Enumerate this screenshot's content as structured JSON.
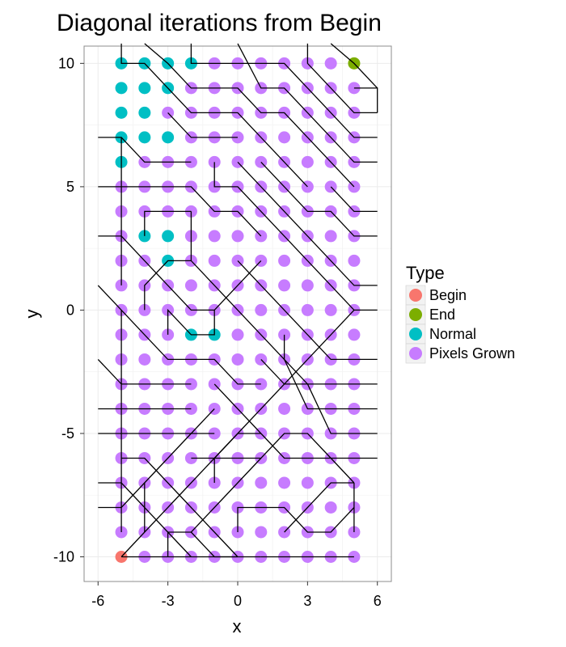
{
  "chart_data": {
    "type": "scatter",
    "title": "Diagonal iterations from Begin",
    "xlabel": "x",
    "ylabel": "y",
    "xlim": [
      -6.6,
      6.6
    ],
    "ylim": [
      -11.0,
      10.7
    ],
    "x_ticks": [
      -6,
      -3,
      0,
      3,
      6
    ],
    "y_ticks": [
      -10,
      -5,
      0,
      5,
      10
    ],
    "x_tick_labels": [
      "-6",
      "-3",
      "0",
      "3",
      "6"
    ],
    "y_tick_labels": [
      "-10",
      "-5",
      "0",
      "5",
      "10"
    ],
    "grid": true,
    "legend": {
      "title": "Type",
      "position": "right",
      "entries": [
        {
          "name": "Begin",
          "color": "#F8766D"
        },
        {
          "name": "End",
          "color": "#7CAE00"
        },
        {
          "name": "Normal",
          "color": "#00BFC4"
        },
        {
          "name": "Pixels Grown",
          "color": "#C77CFF"
        }
      ]
    },
    "series": [
      {
        "name": "Begin",
        "color": "#F8766D",
        "points": [
          [
            -5,
            -10
          ]
        ]
      },
      {
        "name": "End",
        "color": "#7CAE00",
        "points": [
          [
            5,
            10
          ]
        ]
      },
      {
        "name": "Normal",
        "color": "#00BFC4",
        "points": [
          [
            -5,
            10
          ],
          [
            -4,
            10
          ],
          [
            -3,
            10
          ],
          [
            -2,
            10
          ],
          [
            -5,
            9
          ],
          [
            -4,
            9
          ],
          [
            -3,
            9
          ],
          [
            -5,
            8
          ],
          [
            -4,
            8
          ],
          [
            -5,
            7
          ],
          [
            -4,
            7
          ],
          [
            -3,
            7
          ],
          [
            -5,
            6
          ],
          [
            -4,
            3
          ],
          [
            -3,
            3
          ],
          [
            -3,
            2
          ],
          [
            -2,
            -1
          ],
          [
            -1,
            -1
          ]
        ]
      },
      {
        "name": "Pixels Grown",
        "color": "#C77CFF",
        "grid_fill": {
          "x": [
            -5,
            5
          ],
          "y": [
            -10,
            10
          ]
        }
      }
    ],
    "paths": [
      [
        [
          -5,
          -10
        ],
        [
          -4,
          -10
        ],
        [
          -3,
          -10
        ],
        [
          -2,
          -10
        ],
        [
          -1,
          -10
        ],
        [
          0,
          -10
        ],
        [
          1,
          -10
        ]
      ],
      [
        [
          -5,
          -10
        ],
        [
          -4,
          -9
        ],
        [
          -3,
          -8
        ],
        [
          -2,
          -7
        ],
        [
          -1,
          -6
        ],
        [
          0,
          -5
        ],
        [
          1,
          -4
        ],
        [
          2,
          -3
        ],
        [
          3,
          -2
        ],
        [
          4,
          -1
        ],
        [
          5,
          0
        ]
      ],
      [
        [
          -5,
          -9
        ],
        [
          -5,
          -8
        ],
        [
          -5,
          -7
        ],
        [
          -5,
          -6
        ],
        [
          -5,
          -5
        ],
        [
          -5,
          -4
        ],
        [
          -5,
          -3
        ],
        [
          -5,
          -2
        ],
        [
          -5,
          -1
        ],
        [
          -5,
          0
        ]
      ],
      [
        [
          -6,
          -7
        ],
        [
          -5,
          -7
        ],
        [
          -4,
          -8
        ],
        [
          -3,
          -9
        ],
        [
          -2,
          -10
        ]
      ],
      [
        [
          -6,
          -8
        ],
        [
          -5,
          -8
        ],
        [
          -4,
          -7
        ],
        [
          -3,
          -6
        ],
        [
          -2,
          -5
        ],
        [
          -1,
          -4
        ]
      ],
      [
        [
          -6,
          -5
        ],
        [
          -4,
          -5
        ],
        [
          -3,
          -5
        ],
        [
          -2,
          -5
        ],
        [
          -1,
          -5
        ]
      ],
      [
        [
          -6,
          -4
        ],
        [
          -4,
          -4
        ],
        [
          -3,
          -4
        ],
        [
          -2,
          -4
        ]
      ],
      [
        [
          -6,
          -2
        ],
        [
          -5,
          -3
        ],
        [
          -4,
          -3
        ],
        [
          -3,
          -3
        ],
        [
          -2,
          -3
        ]
      ],
      [
        [
          -5,
          -6
        ],
        [
          -4,
          -6
        ],
        [
          -3,
          -7
        ],
        [
          -2,
          -8
        ],
        [
          -1,
          -9
        ],
        [
          0,
          -10
        ]
      ],
      [
        [
          -4,
          -9
        ],
        [
          -4,
          -8
        ],
        [
          -4,
          -7
        ]
      ],
      [
        [
          -3,
          -10
        ],
        [
          -3,
          -9
        ],
        [
          -2,
          -9
        ],
        [
          -1,
          -8
        ],
        [
          0,
          -7
        ],
        [
          1,
          -6
        ]
      ],
      [
        [
          -2,
          -6
        ],
        [
          -1,
          -6
        ],
        [
          0,
          -6
        ],
        [
          1,
          -6
        ],
        [
          2,
          -5
        ],
        [
          3,
          -5
        ],
        [
          4,
          -6
        ],
        [
          5,
          -7
        ]
      ],
      [
        [
          0,
          -9
        ],
        [
          0,
          -8
        ],
        [
          1,
          -8
        ],
        [
          2,
          -8
        ],
        [
          3,
          -9
        ],
        [
          4,
          -9
        ],
        [
          5,
          -8
        ]
      ],
      [
        [
          1,
          -10
        ],
        [
          2,
          -10
        ],
        [
          3,
          -10
        ],
        [
          4,
          -10
        ],
        [
          5,
          -10
        ]
      ],
      [
        [
          2,
          -9
        ],
        [
          3,
          -8
        ],
        [
          4,
          -7
        ],
        [
          5,
          -7
        ]
      ],
      [
        [
          -5,
          1
        ],
        [
          -5,
          2
        ],
        [
          -5,
          3
        ],
        [
          -5,
          4
        ],
        [
          -5,
          5
        ],
        [
          -5,
          6
        ],
        [
          -5,
          7
        ]
      ],
      [
        [
          -6,
          1
        ],
        [
          -5,
          0
        ],
        [
          -4,
          -1
        ],
        [
          -3,
          -2
        ],
        [
          -2,
          -2
        ],
        [
          -1,
          -2
        ],
        [
          0,
          -3
        ],
        [
          1,
          -3
        ]
      ],
      [
        [
          -6,
          3
        ],
        [
          -5,
          3
        ],
        [
          -4,
          2
        ],
        [
          -3,
          1
        ],
        [
          -2,
          0
        ],
        [
          -1,
          0
        ],
        [
          0,
          1
        ],
        [
          1,
          2
        ]
      ],
      [
        [
          -6,
          5
        ],
        [
          -4,
          5
        ],
        [
          -3,
          5
        ],
        [
          -2,
          5
        ],
        [
          -1,
          4
        ],
        [
          0,
          4
        ],
        [
          1,
          3
        ]
      ],
      [
        [
          -6,
          7
        ],
        [
          -5,
          7
        ],
        [
          -4,
          6
        ],
        [
          -3,
          6
        ],
        [
          -2,
          6
        ]
      ],
      [
        [
          -5,
          10.8
        ],
        [
          -5,
          10
        ],
        [
          -4,
          10
        ],
        [
          -3,
          9
        ],
        [
          -2,
          8
        ],
        [
          -1,
          8
        ],
        [
          0,
          8
        ],
        [
          1,
          7
        ],
        [
          2,
          6
        ],
        [
          3,
          5
        ]
      ],
      [
        [
          -4,
          10.8
        ],
        [
          -3,
          10
        ],
        [
          -2,
          9
        ],
        [
          -1,
          9
        ],
        [
          0,
          9
        ],
        [
          1,
          8
        ],
        [
          2,
          8
        ],
        [
          3,
          7
        ],
        [
          4,
          6
        ],
        [
          5,
          5
        ]
      ],
      [
        [
          -2,
          10.8
        ],
        [
          -2,
          10
        ],
        [
          -1,
          10
        ],
        [
          0,
          10
        ],
        [
          1,
          10
        ],
        [
          2,
          10
        ],
        [
          3,
          9
        ],
        [
          4,
          8
        ],
        [
          5,
          7
        ],
        [
          6,
          7
        ]
      ],
      [
        [
          0,
          10.8
        ],
        [
          1,
          9
        ],
        [
          2,
          9
        ],
        [
          3,
          8
        ],
        [
          4,
          7
        ],
        [
          5,
          6
        ],
        [
          6,
          6
        ]
      ],
      [
        [
          3,
          10.8
        ],
        [
          3,
          10
        ],
        [
          4,
          9
        ],
        [
          5,
          8
        ],
        [
          6,
          8
        ]
      ],
      [
        [
          4,
          10.8
        ],
        [
          5,
          10
        ],
        [
          6,
          9
        ]
      ],
      [
        [
          -2,
          4
        ],
        [
          -2,
          3
        ],
        [
          -2,
          2
        ],
        [
          -1,
          1
        ],
        [
          0,
          0
        ],
        [
          1,
          -1
        ],
        [
          2,
          -2
        ],
        [
          3,
          -3
        ],
        [
          4,
          -3
        ],
        [
          5,
          -3
        ],
        [
          6,
          -3
        ]
      ],
      [
        [
          0,
          2
        ],
        [
          1,
          1
        ],
        [
          2,
          0
        ],
        [
          3,
          -1
        ],
        [
          4,
          -2
        ],
        [
          5,
          -2
        ],
        [
          6,
          -2
        ]
      ],
      [
        [
          0,
          6
        ],
        [
          1,
          5
        ],
        [
          2,
          4
        ],
        [
          3,
          3
        ],
        [
          4,
          2
        ],
        [
          5,
          1
        ],
        [
          6,
          1
        ]
      ],
      [
        [
          1,
          6
        ],
        [
          2,
          5
        ],
        [
          3,
          4
        ],
        [
          4,
          4
        ],
        [
          5,
          3
        ],
        [
          6,
          3
        ]
      ],
      [
        [
          -1,
          6
        ],
        [
          -1,
          5
        ],
        [
          0,
          5
        ],
        [
          1,
          4
        ],
        [
          2,
          3
        ],
        [
          3,
          2
        ],
        [
          4,
          1
        ],
        [
          5,
          0
        ],
        [
          6,
          0
        ]
      ],
      [
        [
          2,
          -1
        ],
        [
          2,
          -2
        ],
        [
          3,
          -4
        ],
        [
          4,
          -4
        ],
        [
          5,
          -4
        ],
        [
          6,
          -4
        ]
      ],
      [
        [
          1,
          -2
        ],
        [
          2,
          -3
        ],
        [
          3,
          -3
        ],
        [
          4,
          -5
        ],
        [
          5,
          -5
        ],
        [
          6,
          -5
        ]
      ],
      [
        [
          -1,
          -3
        ],
        [
          0,
          -4
        ],
        [
          1,
          -5
        ],
        [
          2,
          -6
        ],
        [
          3,
          -6
        ],
        [
          4,
          -6
        ],
        [
          5,
          -6
        ],
        [
          6,
          -6
        ]
      ],
      [
        [
          -3,
          -1
        ],
        [
          -3,
          0
        ],
        [
          -2,
          -1
        ],
        [
          -1,
          -1
        ],
        [
          -1,
          0
        ]
      ],
      [
        [
          -4,
          0
        ],
        [
          -4,
          1
        ],
        [
          -3,
          2
        ],
        [
          -2,
          2
        ]
      ],
      [
        [
          -4,
          3
        ],
        [
          -4,
          4
        ],
        [
          -3,
          4
        ],
        [
          -2,
          4
        ]
      ],
      [
        [
          -3,
          8
        ],
        [
          -2,
          7
        ],
        [
          -1,
          7
        ],
        [
          0,
          7
        ]
      ],
      [
        [
          5,
          9
        ],
        [
          6,
          9
        ],
        [
          6,
          8
        ]
      ],
      [
        [
          4,
          5
        ],
        [
          5,
          4
        ],
        [
          6,
          4
        ]
      ],
      [
        [
          5,
          -9
        ],
        [
          5,
          -8
        ],
        [
          5,
          -7
        ]
      ],
      [
        [
          -2,
          -9
        ],
        [
          -1,
          -10
        ],
        [
          0,
          -10
        ]
      ],
      [
        [
          -1,
          -7
        ],
        [
          -1,
          -6
        ],
        [
          0,
          -5
        ],
        [
          1,
          -5
        ]
      ]
    ]
  }
}
